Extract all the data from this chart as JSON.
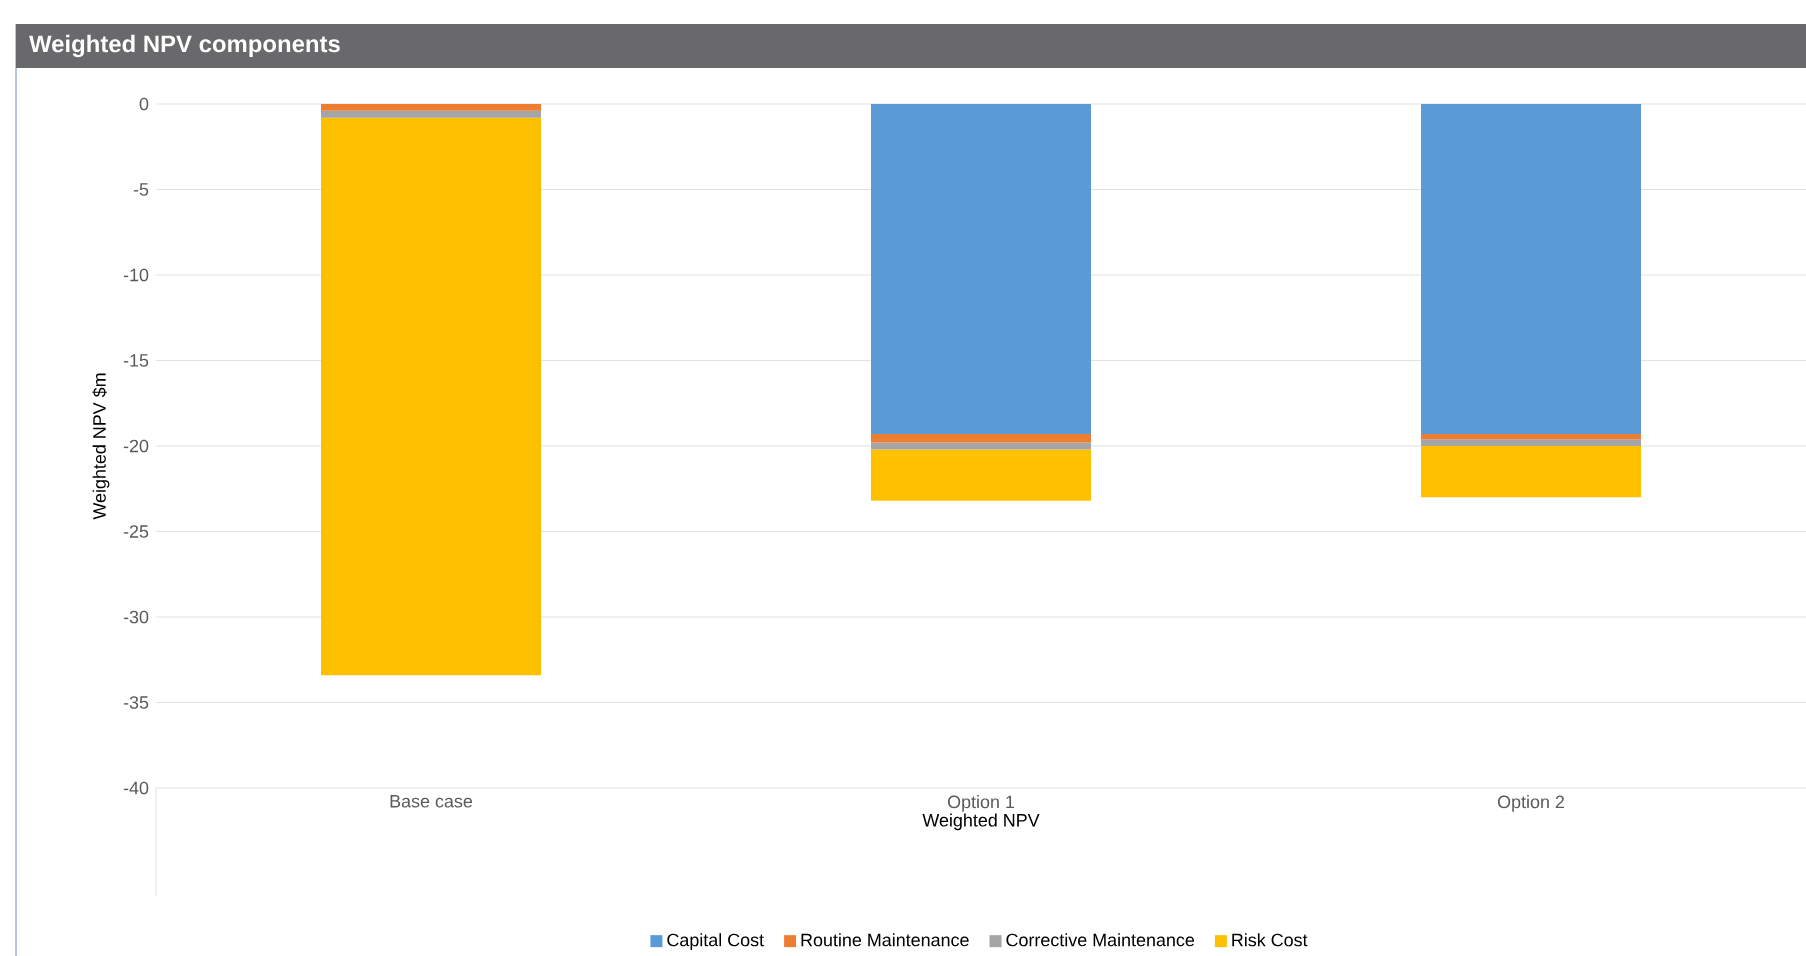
{
  "chart_data": {
    "type": "bar",
    "stacked": true,
    "title": "Weighted NPV components",
    "xlabel": "Weighted NPV",
    "ylabel": "Weighted NPV $m",
    "categories": [
      "Base case",
      "Option 1",
      "Option 2"
    ],
    "series": [
      {
        "name": "Capital Cost",
        "color": "#5b9bd5",
        "values": [
          0,
          -19.3,
          -19.3
        ]
      },
      {
        "name": "Routine Maintenance",
        "color": "#ed7d31",
        "values": [
          -0.4,
          -0.5,
          -0.3
        ]
      },
      {
        "name": "Corrective Maintenance",
        "color": "#a5a5a5",
        "values": [
          -0.4,
          -0.4,
          -0.4
        ]
      },
      {
        "name": "Risk Cost",
        "color": "#ffc000",
        "values": [
          -32.6,
          -3.0,
          -3.0
        ]
      }
    ],
    "ylim": [
      -40,
      0
    ],
    "yticks": [
      0,
      -5,
      -10,
      -15,
      -20,
      -25,
      -30,
      -35,
      -40
    ],
    "grid": "y",
    "legend": "bottom"
  }
}
